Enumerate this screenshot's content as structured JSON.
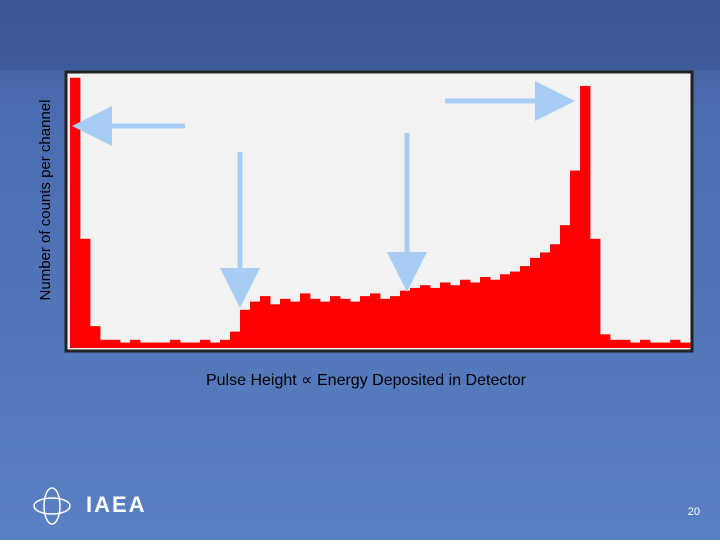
{
  "chart_data": {
    "type": "bar",
    "y_label": "Number of counts per channel",
    "x_label": "Pulse Height ∝ Energy Deposited in Detector",
    "values": [
      99,
      40,
      8,
      3,
      3,
      2,
      3,
      2,
      2,
      2,
      3,
      2,
      2,
      3,
      2,
      3,
      6,
      14,
      17,
      19,
      16,
      18,
      17,
      20,
      18,
      17,
      19,
      18,
      17,
      19,
      20,
      18,
      19,
      21,
      22,
      23,
      22,
      24,
      23,
      25,
      24,
      26,
      25,
      27,
      28,
      30,
      33,
      35,
      38,
      45,
      65,
      96,
      40,
      5,
      3,
      3,
      2,
      3,
      2,
      2,
      3,
      2
    ],
    "color": "#ff0000",
    "ylim": [
      0,
      100
    ]
  },
  "footer": {
    "logo": "IAEA",
    "page": "20"
  }
}
